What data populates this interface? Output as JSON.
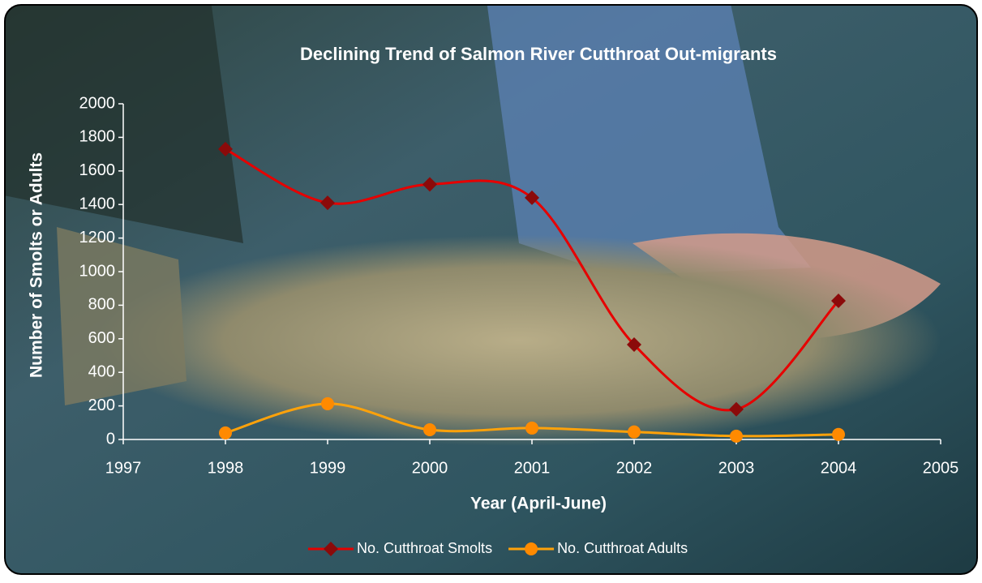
{
  "chart_data": {
    "type": "line",
    "title": "Declining Trend of Salmon River Cutthroat Out-migrants",
    "x_label": "Year (April-June)",
    "y_label": "Number of Smolts or Adults",
    "x": [
      1998,
      1999,
      2000,
      2001,
      2002,
      2003,
      2004
    ],
    "series": [
      {
        "name": "No. Cutthroat Smolts",
        "color": "#e60000",
        "marker_color": "#8b0a0a",
        "marker": "diamond",
        "values": [
          1730,
          1410,
          1520,
          1440,
          565,
          180,
          826
        ]
      },
      {
        "name": "No. Cutthroat Adults",
        "color": "#ffa20a",
        "marker_color": "#ff8a00",
        "marker": "circle",
        "values": [
          39,
          213,
          58,
          68,
          45,
          20,
          30
        ]
      }
    ],
    "xlim": [
      1997,
      2005
    ],
    "xticks": [
      1997,
      1998,
      1999,
      2000,
      2001,
      2002,
      2003,
      2004,
      2005
    ],
    "ylim": [
      0,
      2000
    ],
    "yticks": [
      0,
      200,
      400,
      600,
      800,
      1000,
      1200,
      1400,
      1600,
      1800,
      2000
    ],
    "smooth": true,
    "legend": "bottom"
  }
}
